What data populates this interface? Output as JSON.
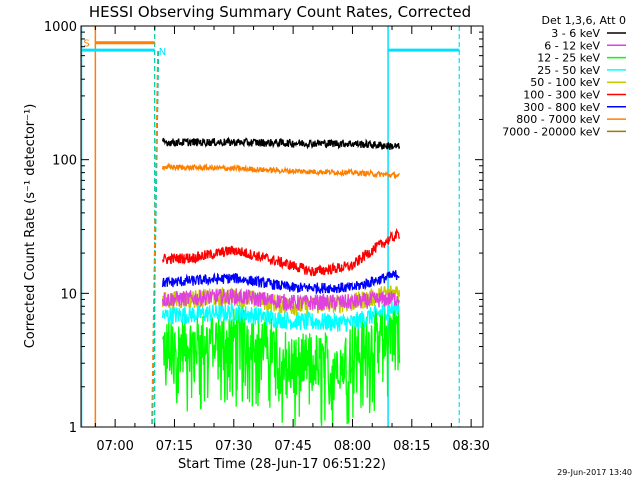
{
  "chart_data": {
    "type": "line",
    "title": "HESSI Observing Summary Count Rates, Corrected",
    "xlabel": "Start Time (28-Jun-17 06:51:22)",
    "ylabel": "Corrected Count Rate (s⁻¹ detector⁻¹)",
    "y_scale": "log",
    "ylim": [
      1,
      1000
    ],
    "xlim_minutes": [
      "06:51:22",
      "08:33:00"
    ],
    "x_ticks": [
      "07:00",
      "07:15",
      "07:30",
      "07:45",
      "08:00",
      "08:15",
      "08:30"
    ],
    "x_tick_minutes": [
      420,
      435,
      450,
      465,
      480,
      495,
      510
    ],
    "x_range_minutes": [
      411.37,
      513.0
    ],
    "y_ticks": [
      "1",
      "10",
      "100",
      "1000"
    ],
    "y_tick_values": [
      1,
      10,
      100,
      1000
    ],
    "legend_title": "Det 1,3,6, Att 0",
    "legend_position": "outside-right",
    "timestamp": "29-Jun-2017 13:40",
    "annotations": {
      "flags": [
        {
          "label": "S",
          "color": "#ff8000",
          "start": "06:55",
          "end": "07:10",
          "level": 750
        },
        {
          "label": "N",
          "color": "#00e0ff",
          "start": "06:51:22",
          "end": "07:10",
          "level": 660
        },
        {
          "label": "",
          "color": "#00e0ff",
          "start": "08:09",
          "end": "08:27",
          "level": 660
        }
      ],
      "vlines": [
        {
          "time": "06:51:30",
          "color": "#00e0ff",
          "style": "solid"
        },
        {
          "time": "06:55",
          "color": "#ff8000",
          "style": "solid"
        },
        {
          "time": "07:10",
          "color": "#00c8a0",
          "style": "dashed"
        },
        {
          "time": "08:09",
          "color": "#00e0ff",
          "style": "solid"
        },
        {
          "time": "08:27",
          "color": "#00e0ff",
          "style": "dashed"
        }
      ]
    },
    "time_range": [
      "07:12",
      "08:12"
    ],
    "series": [
      {
        "name": "3 - 6 keV",
        "color": "#000000",
        "times": [
          "07:12",
          "07:30",
          "07:45",
          "08:00",
          "08:12"
        ],
        "values": [
          135,
          135,
          133,
          132,
          125
        ],
        "noise": 0.03
      },
      {
        "name": "6 - 12 keV",
        "color": "#e040e0",
        "times": [
          "07:12",
          "07:30",
          "07:45",
          "08:00",
          "08:12"
        ],
        "values": [
          9.0,
          9.5,
          8.5,
          8.6,
          9.2
        ],
        "noise": 0.06
      },
      {
        "name": "12 - 25 keV",
        "color": "#00ff00",
        "times": [
          "07:12",
          "07:25",
          "07:35",
          "07:45",
          "07:55",
          "08:05",
          "08:12"
        ],
        "values": [
          4.0,
          4.5,
          5.0,
          3.0,
          3.2,
          4.5,
          6.0
        ],
        "noise": 0.22
      },
      {
        "name": "25 - 50 keV",
        "color": "#00ffff",
        "times": [
          "07:12",
          "07:30",
          "07:45",
          "08:00",
          "08:12"
        ],
        "values": [
          6.8,
          7.2,
          6.2,
          6.0,
          8.0
        ],
        "noise": 0.07
      },
      {
        "name": "50 - 100 keV",
        "color": "#c8c800",
        "times": [
          "07:12",
          "07:30",
          "07:45",
          "08:00",
          "08:12"
        ],
        "values": [
          8.8,
          9.5,
          8.0,
          8.5,
          10.5
        ],
        "noise": 0.07
      },
      {
        "name": "100 - 300 keV",
        "color": "#ff0000",
        "times": [
          "07:12",
          "07:20",
          "07:30",
          "07:42",
          "07:50",
          "08:00",
          "08:05",
          "08:12"
        ],
        "values": [
          18,
          18.5,
          21,
          17,
          14.5,
          16,
          21,
          28
        ],
        "noise": 0.04
      },
      {
        "name": "300 - 800 keV",
        "color": "#0000ff",
        "times": [
          "07:12",
          "07:30",
          "07:45",
          "08:00",
          "08:12"
        ],
        "values": [
          12,
          13,
          11,
          11,
          14
        ],
        "noise": 0.04
      },
      {
        "name": "800 - 7000 keV",
        "color": "#ff8000",
        "times": [
          "07:12",
          "07:30",
          "07:45",
          "08:00",
          "08:12"
        ],
        "values": [
          88,
          86,
          82,
          80,
          76
        ],
        "noise": 0.02
      },
      {
        "name": "7000 - 20000 keV",
        "color": "#a07800",
        "times": [],
        "values": [],
        "noise": 0
      }
    ]
  }
}
